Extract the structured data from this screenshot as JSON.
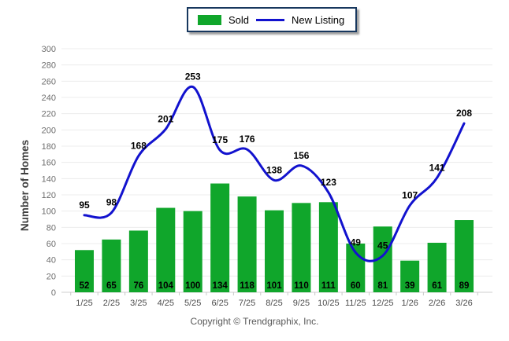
{
  "legend": {
    "sold_label": "Sold",
    "new_listing_label": "New Listing"
  },
  "footer": {
    "copyright": "Copyright © Trendgraphix, Inc."
  },
  "colors": {
    "bar": "#10A62B",
    "line": "#1212CE",
    "grid": "#ECECEC",
    "baseline": "#CFCFCF",
    "tick": "#C8C8C8",
    "legend_border": "#17375E"
  },
  "chart_data": {
    "type": "bar",
    "title": "",
    "xlabel": "",
    "ylabel": "Number of Homes",
    "ylim": [
      0,
      300
    ],
    "ytick_step": 20,
    "grid": true,
    "legend_position": "top-center",
    "categories": [
      "1/25",
      "2/25",
      "3/25",
      "4/25",
      "5/25",
      "6/25",
      "7/25",
      "8/25",
      "9/25",
      "10/25",
      "11/25",
      "12/25",
      "1/26",
      "2/26",
      "3/26"
    ],
    "series": [
      {
        "name": "Sold",
        "type": "bar",
        "color": "#10A62B",
        "values": [
          52,
          65,
          76,
          104,
          100,
          134,
          118,
          101,
          110,
          111,
          60,
          81,
          39,
          61,
          89
        ]
      },
      {
        "name": "New Listing",
        "type": "line",
        "color": "#1212CE",
        "values": [
          95,
          98,
          168,
          201,
          253,
          175,
          176,
          138,
          156,
          123,
          49,
          45,
          107,
          141,
          208
        ]
      }
    ]
  }
}
